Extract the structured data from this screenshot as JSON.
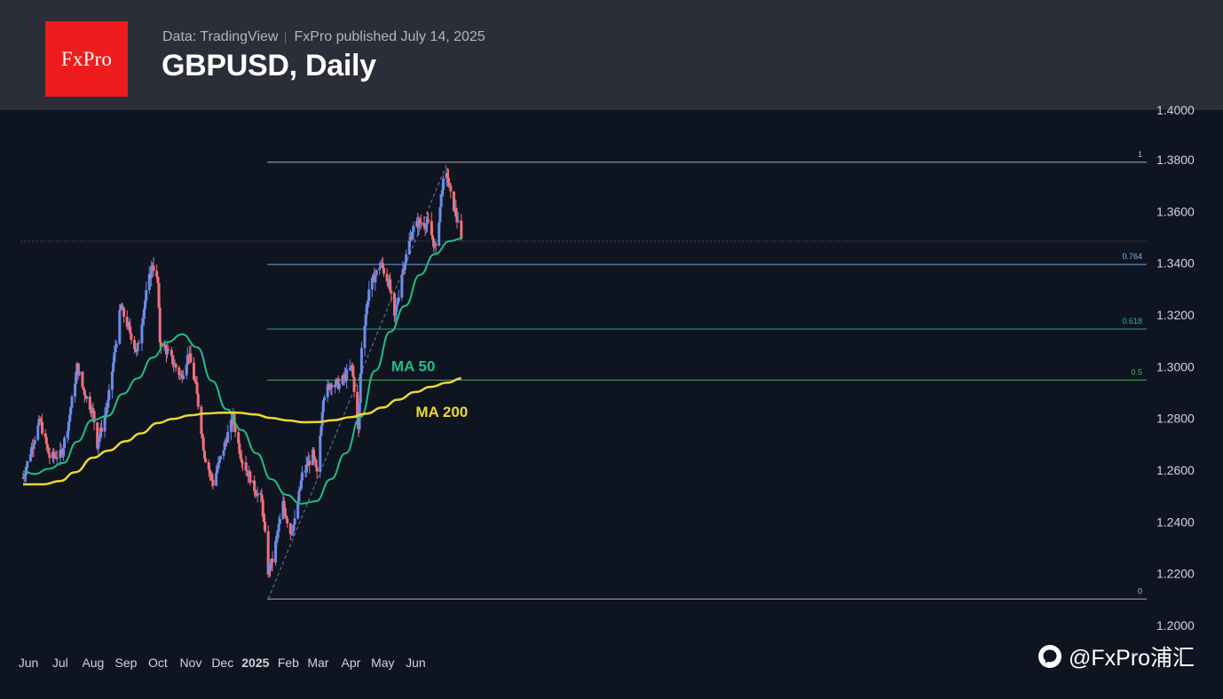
{
  "header": {
    "logo_text": "FxPro",
    "source": "Data: TradingView",
    "published": "FxPro published July 14, 2025",
    "title": "GBPUSD, Daily"
  },
  "watermark": {
    "text": "@FxPro浦汇",
    "icon": "chat-bubble-icon"
  },
  "colors": {
    "background": "#0f1421",
    "up": "#6b8de8",
    "down": "#f0707a",
    "ma50": "#1fbf85",
    "ma200": "#ecd633",
    "fib": "#a6b3c4",
    "logo": "#ee1c1c"
  },
  "chart_data": {
    "type": "candlestick",
    "title": "GBPUSD, Daily",
    "y_ticks": [
      "1.2000",
      "1.2200",
      "1.2400",
      "1.2600",
      "1.2800",
      "1.3000",
      "1.3200",
      "1.3400",
      "1.3600",
      "1.3800"
    ],
    "ylim": [
      1.2,
      1.38
    ],
    "x_ticks": [
      "Jun",
      "Jul",
      "Aug",
      "Sep",
      "Oct",
      "Nov",
      "Dec",
      "2025",
      "Feb",
      "Mar",
      "Apr",
      "May",
      "Jun"
    ],
    "last_price": 1.3485,
    "close_path": [
      [
        "2024-05-27",
        1.257
      ],
      [
        "2024-06-07",
        1.273
      ],
      [
        "2024-06-12",
        1.279
      ],
      [
        "2024-06-21",
        1.265
      ],
      [
        "2024-07-02",
        1.266
      ],
      [
        "2024-07-09",
        1.279
      ],
      [
        "2024-07-17",
        1.3
      ],
      [
        "2024-07-22",
        1.292
      ],
      [
        "2024-08-01",
        1.282
      ],
      [
        "2024-08-05",
        1.27
      ],
      [
        "2024-08-15",
        1.286
      ],
      [
        "2024-08-27",
        1.323
      ],
      [
        "2024-09-06",
        1.312
      ],
      [
        "2024-09-11",
        1.305
      ],
      [
        "2024-09-20",
        1.328
      ],
      [
        "2024-09-26",
        1.34
      ],
      [
        "2024-10-01",
        1.332
      ],
      [
        "2024-10-03",
        1.31
      ],
      [
        "2024-10-11",
        1.305
      ],
      [
        "2024-10-23",
        1.296
      ],
      [
        "2024-10-30",
        1.305
      ],
      [
        "2024-11-06",
        1.292
      ],
      [
        "2024-11-14",
        1.266
      ],
      [
        "2024-11-22",
        1.255
      ],
      [
        "2024-12-06",
        1.274
      ],
      [
        "2024-12-11",
        1.28
      ],
      [
        "2024-12-18",
        1.266
      ],
      [
        "2024-12-31",
        1.253
      ],
      [
        "2025-01-07",
        1.248
      ],
      [
        "2025-01-13",
        1.221
      ],
      [
        "2025-01-17",
        1.225
      ],
      [
        "2025-01-27",
        1.247
      ],
      [
        "2025-02-03",
        1.236
      ],
      [
        "2025-02-07",
        1.24
      ],
      [
        "2025-02-14",
        1.258
      ],
      [
        "2025-02-24",
        1.266
      ],
      [
        "2025-02-28",
        1.258
      ],
      [
        "2025-03-06",
        1.289
      ],
      [
        "2025-03-14",
        1.294
      ],
      [
        "2025-03-21",
        1.293
      ],
      [
        "2025-04-02",
        1.3
      ],
      [
        "2025-04-08",
        1.275
      ],
      [
        "2025-04-11",
        1.308
      ],
      [
        "2025-04-18",
        1.33
      ],
      [
        "2025-04-29",
        1.34
      ],
      [
        "2025-05-07",
        1.332
      ],
      [
        "2025-05-12",
        1.318
      ],
      [
        "2025-05-19",
        1.336
      ],
      [
        "2025-05-29",
        1.353
      ],
      [
        "2025-06-05",
        1.356
      ],
      [
        "2025-06-13",
        1.355
      ],
      [
        "2025-06-20",
        1.345
      ],
      [
        "2025-06-26",
        1.37
      ],
      [
        "2025-07-01",
        1.374
      ],
      [
        "2025-07-04",
        1.366
      ],
      [
        "2025-07-09",
        1.359
      ],
      [
        "2025-07-14",
        1.3485
      ]
    ],
    "series": [
      {
        "name": "MA 50",
        "points": [
          [
            "2024-05-27",
            1.2595
          ],
          [
            "2024-06-07",
            1.2585
          ],
          [
            "2024-06-20",
            1.2605
          ],
          [
            "2024-07-04",
            1.2628
          ],
          [
            "2024-07-17",
            1.271
          ],
          [
            "2024-07-31",
            1.2793
          ],
          [
            "2024-08-15",
            1.281
          ],
          [
            "2024-08-29",
            1.2895
          ],
          [
            "2024-09-12",
            1.2955
          ],
          [
            "2024-09-26",
            1.3035
          ],
          [
            "2024-10-10",
            1.3095
          ],
          [
            "2024-10-24",
            1.3125
          ],
          [
            "2024-11-07",
            1.3075
          ],
          [
            "2024-11-21",
            1.2945
          ],
          [
            "2024-12-05",
            1.2835
          ],
          [
            "2024-12-19",
            1.2755
          ],
          [
            "2025-01-02",
            1.2665
          ],
          [
            "2025-01-16",
            1.2565
          ],
          [
            "2025-01-30",
            1.2505
          ],
          [
            "2025-02-13",
            1.247
          ],
          [
            "2025-02-27",
            1.248
          ],
          [
            "2025-03-13",
            1.2565
          ],
          [
            "2025-03-27",
            1.2665
          ],
          [
            "2025-04-10",
            1.2805
          ],
          [
            "2025-04-24",
            1.2985
          ],
          [
            "2025-05-08",
            1.3135
          ],
          [
            "2025-05-22",
            1.3235
          ],
          [
            "2025-06-05",
            1.3355
          ],
          [
            "2025-06-19",
            1.3435
          ],
          [
            "2025-07-03",
            1.3485
          ],
          [
            "2025-07-14",
            1.3495
          ]
        ]
      },
      {
        "name": "MA 200",
        "points": [
          [
            "2024-05-27",
            1.2545
          ],
          [
            "2024-06-15",
            1.2545
          ],
          [
            "2024-07-01",
            1.2558
          ],
          [
            "2024-07-15",
            1.2592
          ],
          [
            "2024-08-01",
            1.2648
          ],
          [
            "2024-08-15",
            1.2675
          ],
          [
            "2024-09-01",
            1.2712
          ],
          [
            "2024-09-15",
            1.2742
          ],
          [
            "2024-10-01",
            1.2782
          ],
          [
            "2024-10-15",
            1.2798
          ],
          [
            "2024-11-01",
            1.2812
          ],
          [
            "2024-11-15",
            1.2819
          ],
          [
            "2024-12-01",
            1.2822
          ],
          [
            "2024-12-15",
            1.2822
          ],
          [
            "2025-01-01",
            1.2815
          ],
          [
            "2025-01-15",
            1.2802
          ],
          [
            "2025-02-01",
            1.2792
          ],
          [
            "2025-02-15",
            1.2785
          ],
          [
            "2025-03-01",
            1.2786
          ],
          [
            "2025-03-15",
            1.2793
          ],
          [
            "2025-04-01",
            1.2805
          ],
          [
            "2025-04-15",
            1.2818
          ],
          [
            "2025-05-01",
            1.2842
          ],
          [
            "2025-05-15",
            1.2872
          ],
          [
            "2025-06-01",
            1.2902
          ],
          [
            "2025-06-15",
            1.2922
          ],
          [
            "2025-07-01",
            1.2938
          ],
          [
            "2025-07-14",
            1.2955
          ]
        ]
      }
    ],
    "fibonacci": {
      "start": "2025-01-13",
      "end": "2025-07-14",
      "levels": [
        {
          "label": "1",
          "price": 1.379
        },
        {
          "label": "0.764",
          "price": 1.3395
        },
        {
          "label": "0.618",
          "price": 1.3145
        },
        {
          "label": "0.5",
          "price": 1.2948
        },
        {
          "label": "0",
          "price": 1.2102
        }
      ],
      "trend_from": [
        "2025-01-13",
        1.2102
      ],
      "trend_to": [
        "2025-07-01",
        1.379
      ]
    },
    "annotations": [
      {
        "text": "MA 50",
        "date": "2025-05-09",
        "price": 1.2983,
        "color": "#1fbf85"
      },
      {
        "text": "MA 200",
        "date": "2025-06-01",
        "price": 1.2805,
        "color": "#ecd633"
      }
    ]
  }
}
